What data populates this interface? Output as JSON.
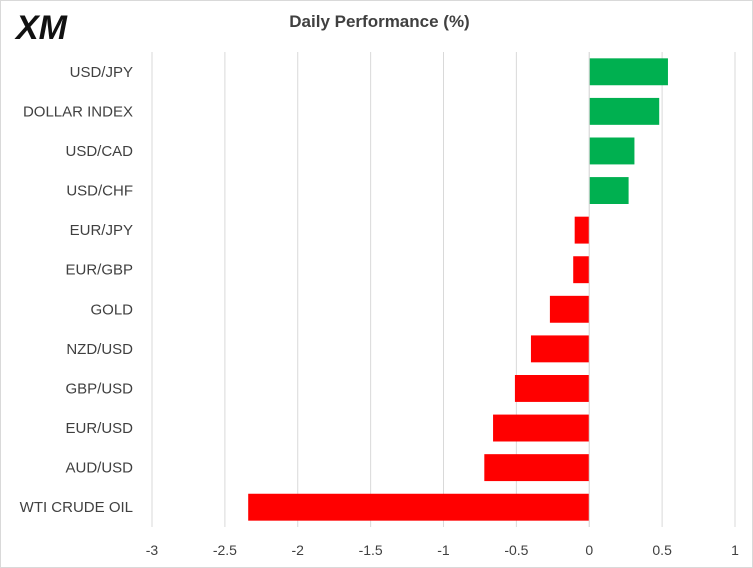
{
  "brand": {
    "logo_text": "XM"
  },
  "chart_data": {
    "type": "bar",
    "orientation": "horizontal",
    "title": "Daily Performance (%)",
    "categories": [
      "USD/JPY",
      "DOLLAR INDEX",
      "USD/CAD",
      "USD/CHF",
      "EUR/JPY",
      "EUR/GBP",
      "GOLD",
      "NZD/USD",
      "GBP/USD",
      "EUR/USD",
      "AUD/USD",
      "WTI CRUDE OIL"
    ],
    "values": [
      0.54,
      0.48,
      0.31,
      0.27,
      -0.1,
      -0.11,
      -0.27,
      -0.4,
      -0.51,
      -0.66,
      -0.72,
      -2.34
    ],
    "xlim": [
      -3,
      1
    ],
    "xticks": [
      "-3",
      "-2.5",
      "-2",
      "-1.5",
      "-1",
      "-0.5",
      "0",
      "0.5",
      "1"
    ],
    "grid": true,
    "colors": {
      "positive": "#00b050",
      "negative": "#ff0000"
    }
  }
}
